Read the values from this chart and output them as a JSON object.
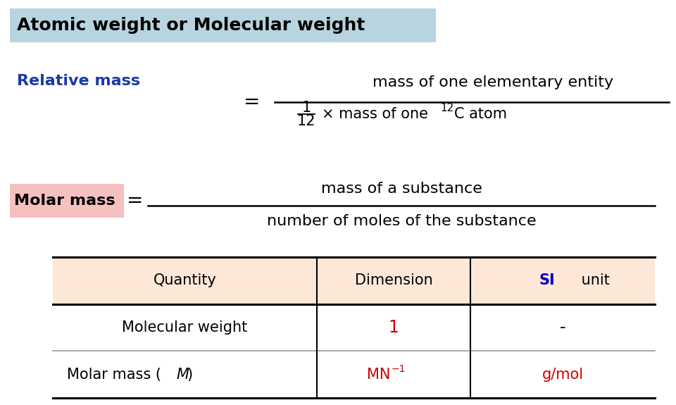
{
  "title": "Atomic weight or Molecular weight",
  "title_bg": "#b8d4e0",
  "title_color": "#000000",
  "relative_mass_label": "Relative mass",
  "relative_mass_color": "#1a3aaa",
  "numerator": "mass of one elementary entity",
  "molar_mass_label": "Molar mass",
  "molar_mass_bg": "#f5c0c0",
  "molar_mass_numerator": "mass of a substance",
  "molar_mass_denominator": "number of moles of the substance",
  "table_header_bg": "#fde8d8",
  "table_col1": "Quantity",
  "table_col2": "Dimension",
  "table_col3_si": "SI",
  "table_col3_unit": " unit",
  "table_col3_color": "#0000cc",
  "table_row1_col1": "Molecular weight",
  "table_row1_col2": "1",
  "table_row1_col3": "-",
  "table_row2_col3": "g/mol",
  "table_data_color": "#cc0000",
  "table_dim_color": "#cc0000",
  "bg_color": "#ffffff",
  "fig_width": 9.6,
  "fig_height": 5.75,
  "dpi": 100
}
